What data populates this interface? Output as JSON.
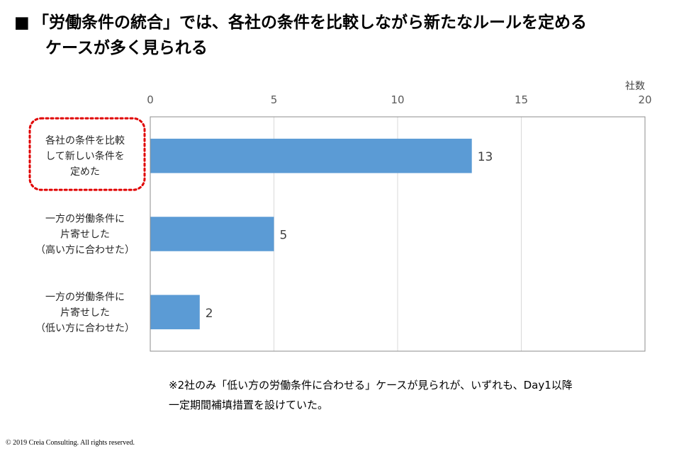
{
  "title": {
    "bullet": "■",
    "line1": "「労働条件の統合」では、各社の条件を比較しながら新たなルールを定める",
    "line2": "ケースが多く見られる"
  },
  "chart_data": {
    "type": "bar",
    "orientation": "horizontal",
    "axis_unit_label": "社数",
    "xlim": [
      0,
      20
    ],
    "ticks": [
      0,
      5,
      10,
      15,
      20
    ],
    "grid": true,
    "categories": [
      [
        "各社の条件を比較",
        "して新しい条件を",
        "定めた"
      ],
      [
        "一方の労働条件に",
        "片寄せした",
        "（高い方に合わせた）"
      ],
      [
        "一方の労働条件に",
        "片寄せした",
        "（低い方に合わせた）"
      ]
    ],
    "values": [
      13,
      5,
      2
    ],
    "bar_color": "#5B9BD5",
    "highlight_color": "#E00000",
    "highlighted_category_index": 0
  },
  "note": {
    "line1": "※2社のみ「低い方の労働条件に合わせる」ケースが見られが、いずれも、Day1以降",
    "line2": "一定期間補填措置を設けていた。"
  },
  "copyright": "© 2019 Creia Consulting. All rights reserved."
}
